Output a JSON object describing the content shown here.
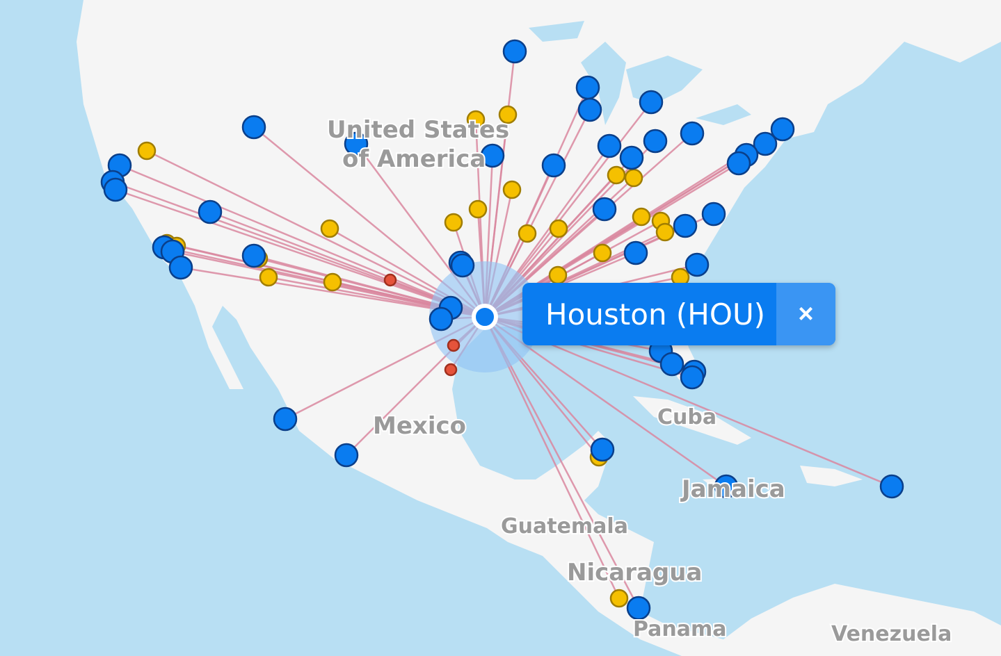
{
  "map": {
    "labels": {
      "usa_line1": "United States",
      "usa_line2": "of America",
      "mexico": "Mexico",
      "cuba": "Cuba",
      "jamaica": "Jamaica",
      "guatemala": "Guatemala",
      "nicaragua": "Nicaragua",
      "panama": "Panama",
      "venezuela": "Venezuela"
    },
    "colors": {
      "water": "#b8dff3",
      "land": "#f5f5f5",
      "route": "#d9879f",
      "marker_blue": "#0a7cf0",
      "marker_yellow": "#f5c000",
      "marker_red": "#e5533b",
      "hub_halo": "#8fc3f5"
    }
  },
  "popup": {
    "title": "Houston (HOU)",
    "close_icon": "close-icon",
    "close_label": "×"
  }
}
